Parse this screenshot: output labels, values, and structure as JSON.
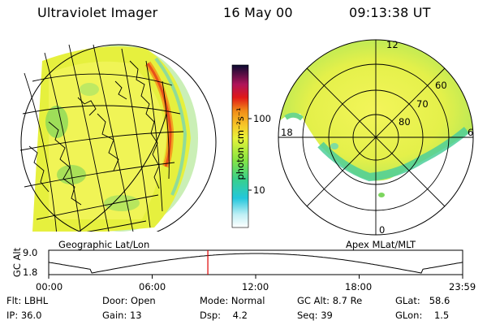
{
  "header": {
    "instrument": "Ultraviolet Imager",
    "date": "16 May 00",
    "time": "09:13:38 UT"
  },
  "panels": {
    "left_label": "Geographic Lat/Lon",
    "right_label": "Apex MLat/MLT"
  },
  "colorbar": {
    "unit_label": "photon cm⁻²s⁻¹",
    "tick_labels": [
      "100",
      "10"
    ]
  },
  "polar_plot": {
    "mlt_labels": [
      "12",
      "18",
      "6",
      "0"
    ],
    "lat_labels": [
      "60",
      "70",
      "80"
    ]
  },
  "gc_alt_plot": {
    "axis_label": "GC Alt",
    "y_ticks": [
      "9.0",
      "1.8"
    ],
    "x_ticks": [
      "00:00",
      "06:00",
      "12:00",
      "18:00",
      "23:59"
    ],
    "marker_time_hours": 9.227
  },
  "info": {
    "row1": [
      {
        "label": "Flt:",
        "value": "LBHL"
      },
      {
        "label": "Door:",
        "value": "Open"
      },
      {
        "label": "Mode:",
        "value": "Normal"
      },
      {
        "label": "GC Alt:",
        "value": "8.7 Re"
      },
      {
        "label": "GLat:",
        "value": "58.6"
      }
    ],
    "row2": [
      {
        "label": "IP:",
        "value": "36.0"
      },
      {
        "label": "Gain:",
        "value": "13"
      },
      {
        "label": "Dsp:",
        "value": "4.2"
      },
      {
        "label": "Seq:",
        "value": "39"
      },
      {
        "label": "GLon:",
        "value": "1.5"
      }
    ]
  },
  "colors": {
    "background": "#ffffff",
    "foreground": "#000000",
    "marker": "#dd0000"
  }
}
